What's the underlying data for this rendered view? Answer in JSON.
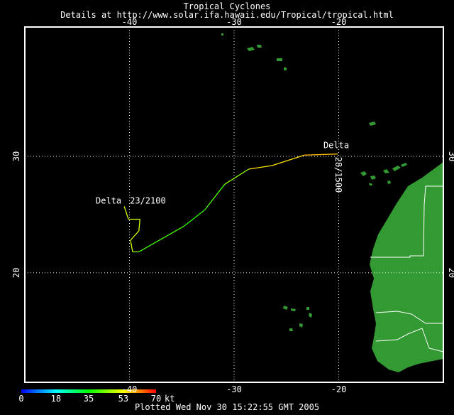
{
  "header": {
    "title": "Tropical Cyclones",
    "subtitle": "Details at http://www.solar.ifa.hawaii.edu/Tropical/tropical.html"
  },
  "map": {
    "lon_range": [
      -50,
      -10
    ],
    "lat_range": [
      10.6,
      41.1
    ],
    "lon_ticks": [
      -40,
      -30,
      -20
    ],
    "lat_ticks": [
      30,
      20
    ],
    "track": {
      "name": "Delta",
      "start_label": "23/2100",
      "end_label": "28/1500",
      "points": [
        {
          "lon": -40.5,
          "lat": 25.7,
          "kt": 50
        },
        {
          "lon": -40.1,
          "lat": 24.6,
          "kt": 50
        },
        {
          "lon": -39.0,
          "lat": 24.6,
          "kt": 50
        },
        {
          "lon": -39.1,
          "lat": 23.6,
          "kt": 50
        },
        {
          "lon": -39.9,
          "lat": 22.8,
          "kt": 50
        },
        {
          "lon": -39.7,
          "lat": 21.8,
          "kt": 45
        },
        {
          "lon": -39.1,
          "lat": 21.8,
          "kt": 40
        },
        {
          "lon": -34.8,
          "lat": 24.0,
          "kt": 38
        },
        {
          "lon": -32.8,
          "lat": 25.4,
          "kt": 40
        },
        {
          "lon": -30.9,
          "lat": 27.6,
          "kt": 45
        },
        {
          "lon": -28.6,
          "lat": 28.9,
          "kt": 55
        },
        {
          "lon": -26.4,
          "lat": 29.2,
          "kt": 55
        },
        {
          "lon": -23.3,
          "lat": 30.1,
          "kt": 58
        },
        {
          "lon": -20.1,
          "lat": 30.2,
          "kt": 60
        }
      ]
    },
    "colorbar": {
      "ticks": [
        0,
        18,
        35,
        53,
        70
      ],
      "unit": "kt"
    }
  },
  "footer": {
    "plotted": "Plotted Wed Nov 30 15:22:55 GMT 2005"
  }
}
